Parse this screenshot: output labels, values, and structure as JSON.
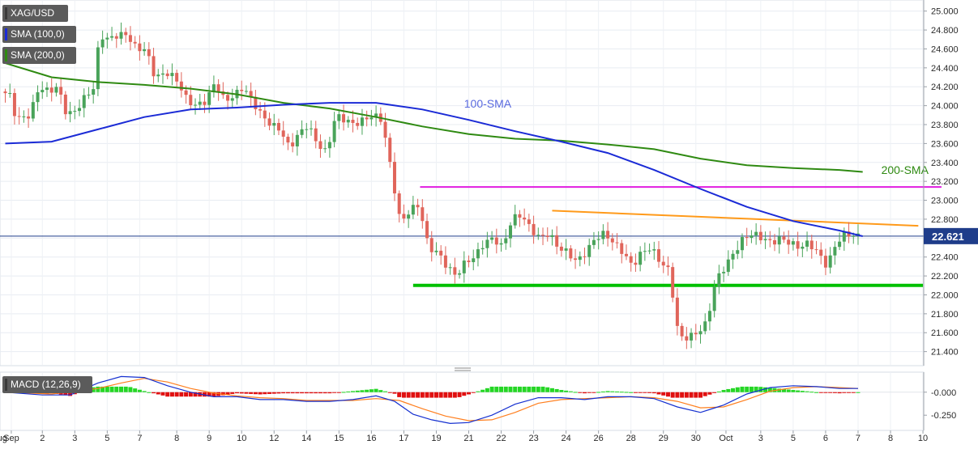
{
  "chart_data": [
    {
      "type": "candlestick",
      "symbol": "XAG/USD",
      "legend": [
        {
          "label": "XAG/USD",
          "color": "#3a3a3a"
        },
        {
          "label": "SMA (100,0)",
          "color": "#1b2bd6"
        },
        {
          "label": "SMA (200,0)",
          "color": "#2f8a12"
        }
      ],
      "y_ticks": [
        "25.000",
        "24.800",
        "24.600",
        "24.400",
        "24.200",
        "24.000",
        "23.800",
        "23.600",
        "23.400",
        "23.200",
        "23.000",
        "22.800",
        "22.600",
        "22.400",
        "22.200",
        "22.000",
        "21.800",
        "21.600",
        "21.400"
      ],
      "ylim": [
        21.26,
        25.1
      ],
      "x_ticks": [
        {
          "label": "Aug",
          "bar": -1.3
        },
        {
          "label": "Sep",
          "bar": 1.3
        },
        {
          "label": "2",
          "bar": 8
        },
        {
          "label": "3",
          "bar": 15
        },
        {
          "label": "5",
          "bar": 22
        },
        {
          "label": "7",
          "bar": 29
        },
        {
          "label": "8",
          "bar": 37
        },
        {
          "label": "9",
          "bar": 44
        },
        {
          "label": "10",
          "bar": 51
        },
        {
          "label": "12",
          "bar": 58
        },
        {
          "label": "14",
          "bar": 65
        },
        {
          "label": "15",
          "bar": 72
        },
        {
          "label": "16",
          "bar": 79
        },
        {
          "label": "17",
          "bar": 86
        },
        {
          "label": "19",
          "bar": 93
        },
        {
          "label": "21",
          "bar": 100
        },
        {
          "label": "22",
          "bar": 107
        },
        {
          "label": "23",
          "bar": 114
        },
        {
          "label": "24",
          "bar": 121
        },
        {
          "label": "26",
          "bar": 128
        },
        {
          "label": "28",
          "bar": 135
        },
        {
          "label": "29",
          "bar": 142
        },
        {
          "label": "30",
          "bar": 149
        },
        {
          "label": "Oct",
          "bar": 155.5
        },
        {
          "label": "3",
          "bar": 163
        },
        {
          "label": "5",
          "bar": 170
        },
        {
          "label": "6",
          "bar": 177
        },
        {
          "label": "7",
          "bar": 184
        },
        {
          "label": "8",
          "bar": 191
        },
        {
          "label": "10",
          "bar": 198
        }
      ],
      "last_price": "22.621",
      "last_price_value": 22.621,
      "anchors": [
        [
          0,
          24.15
        ],
        [
          2,
          24.1
        ],
        [
          3,
          23.85
        ],
        [
          6,
          23.9
        ],
        [
          8,
          24.2
        ],
        [
          10,
          24.15
        ],
        [
          12,
          24.2
        ],
        [
          14,
          23.9
        ],
        [
          16,
          23.95
        ],
        [
          18,
          24.1
        ],
        [
          20,
          24.2
        ],
        [
          21,
          24.75
        ],
        [
          23,
          24.7
        ],
        [
          25,
          24.75
        ],
        [
          27,
          24.75
        ],
        [
          29,
          24.6
        ],
        [
          31,
          24.6
        ],
        [
          33,
          24.3
        ],
        [
          36,
          24.35
        ],
        [
          38,
          24.25
        ],
        [
          40,
          24.05
        ],
        [
          42,
          24.0
        ],
        [
          44,
          24.05
        ],
        [
          46,
          24.25
        ],
        [
          48,
          24.05
        ],
        [
          50,
          24.1
        ],
        [
          52,
          24.2
        ],
        [
          54,
          24.05
        ],
        [
          56,
          23.9
        ],
        [
          58,
          23.8
        ],
        [
          60,
          23.75
        ],
        [
          62,
          23.55
        ],
        [
          64,
          23.7
        ],
        [
          66,
          23.8
        ],
        [
          68,
          23.6
        ],
        [
          70,
          23.5
        ],
        [
          72,
          23.9
        ],
        [
          74,
          23.85
        ],
        [
          76,
          23.8
        ],
        [
          78,
          23.85
        ],
        [
          80,
          23.9
        ],
        [
          82,
          23.85
        ],
        [
          84,
          23.3
        ],
        [
          86,
          22.75
        ],
        [
          88,
          22.9
        ],
        [
          90,
          22.95
        ],
        [
          92,
          22.5
        ],
        [
          94,
          22.45
        ],
        [
          96,
          22.3
        ],
        [
          98,
          22.2
        ],
        [
          100,
          22.35
        ],
        [
          102,
          22.4
        ],
        [
          104,
          22.55
        ],
        [
          106,
          22.6
        ],
        [
          108,
          22.5
        ],
        [
          110,
          22.8
        ],
        [
          112,
          22.85
        ],
        [
          114,
          22.7
        ],
        [
          116,
          22.6
        ],
        [
          118,
          22.65
        ],
        [
          120,
          22.5
        ],
        [
          122,
          22.45
        ],
        [
          124,
          22.35
        ],
        [
          126,
          22.45
        ],
        [
          128,
          22.6
        ],
        [
          130,
          22.65
        ],
        [
          132,
          22.55
        ],
        [
          134,
          22.45
        ],
        [
          136,
          22.3
        ],
        [
          138,
          22.45
        ],
        [
          140,
          22.5
        ],
        [
          142,
          22.35
        ],
        [
          144,
          22.25
        ],
        [
          146,
          21.55
        ],
        [
          148,
          21.55
        ],
        [
          150,
          21.6
        ],
        [
          152,
          21.7
        ],
        [
          154,
          22.15
        ],
        [
          156,
          22.3
        ],
        [
          158,
          22.45
        ],
        [
          160,
          22.6
        ],
        [
          162,
          22.65
        ],
        [
          164,
          22.6
        ],
        [
          166,
          22.55
        ],
        [
          168,
          22.6
        ],
        [
          170,
          22.55
        ],
        [
          172,
          22.5
        ],
        [
          174,
          22.55
        ],
        [
          176,
          22.45
        ],
        [
          178,
          22.3
        ],
        [
          180,
          22.55
        ],
        [
          182,
          22.65
        ],
        [
          184,
          22.62
        ]
      ],
      "sma_100": [
        [
          0,
          23.6
        ],
        [
          10,
          23.62
        ],
        [
          20,
          23.75
        ],
        [
          30,
          23.88
        ],
        [
          40,
          23.96
        ],
        [
          50,
          23.98
        ],
        [
          60,
          24.01
        ],
        [
          70,
          24.03
        ],
        [
          80,
          24.03
        ],
        [
          90,
          23.96
        ],
        [
          100,
          23.85
        ],
        [
          110,
          23.73
        ],
        [
          120,
          23.62
        ],
        [
          130,
          23.5
        ],
        [
          140,
          23.32
        ],
        [
          150,
          23.12
        ],
        [
          160,
          22.93
        ],
        [
          170,
          22.78
        ],
        [
          180,
          22.68
        ],
        [
          185,
          22.62
        ]
      ],
      "sma_200": [
        [
          0,
          24.45
        ],
        [
          10,
          24.3
        ],
        [
          20,
          24.25
        ],
        [
          30,
          24.22
        ],
        [
          40,
          24.18
        ],
        [
          50,
          24.12
        ],
        [
          60,
          24.03
        ],
        [
          70,
          23.97
        ],
        [
          80,
          23.88
        ],
        [
          90,
          23.78
        ],
        [
          100,
          23.7
        ],
        [
          110,
          23.65
        ],
        [
          120,
          23.63
        ],
        [
          130,
          23.59
        ],
        [
          140,
          23.54
        ],
        [
          150,
          23.44
        ],
        [
          160,
          23.37
        ],
        [
          170,
          23.34
        ],
        [
          180,
          23.32
        ],
        [
          185,
          23.3
        ]
      ],
      "annotations": [
        {
          "text": "100-SMA",
          "color": "#5a6adf",
          "bar": 99,
          "y": 23.98
        },
        {
          "text": "200-SMA",
          "color": "#2f8a12",
          "bar": 189,
          "y": 23.28
        }
      ],
      "levels": [
        {
          "name": "magenta-resistance",
          "color": "#e01ce0",
          "x1": 89.5,
          "x2": 202,
          "y1": 23.14,
          "y2": 23.14
        },
        {
          "name": "orange-trendline",
          "color": "#ff9a1a",
          "x1": 118,
          "x2": 197,
          "y1": 22.89,
          "y2": 22.73
        },
        {
          "name": "green-support",
          "color": "#00c000",
          "x1": 88,
          "x2": 198,
          "y1": 22.1,
          "y2": 22.1
        }
      ]
    },
    {
      "type": "macd",
      "label": "MACD (12,26,9)",
      "y_ticks": [
        "-0.000",
        "-0.250"
      ],
      "ylim": [
        -0.38,
        0.2
      ],
      "macd": [
        [
          0,
          0.0
        ],
        [
          8,
          -0.03
        ],
        [
          14,
          -0.03
        ],
        [
          20,
          0.1
        ],
        [
          25,
          0.17
        ],
        [
          30,
          0.16
        ],
        [
          35,
          0.07
        ],
        [
          40,
          0.0
        ],
        [
          45,
          -0.05
        ],
        [
          50,
          -0.05
        ],
        [
          55,
          -0.08
        ],
        [
          60,
          -0.08
        ],
        [
          65,
          -0.1
        ],
        [
          70,
          -0.1
        ],
        [
          75,
          -0.08
        ],
        [
          80,
          -0.04
        ],
        [
          84,
          -0.1
        ],
        [
          88,
          -0.24
        ],
        [
          92,
          -0.3
        ],
        [
          96,
          -0.34
        ],
        [
          100,
          -0.33
        ],
        [
          105,
          -0.25
        ],
        [
          110,
          -0.13
        ],
        [
          115,
          -0.06
        ],
        [
          120,
          -0.06
        ],
        [
          125,
          -0.08
        ],
        [
          130,
          -0.05
        ],
        [
          135,
          -0.05
        ],
        [
          140,
          -0.07
        ],
        [
          145,
          -0.16
        ],
        [
          150,
          -0.22
        ],
        [
          155,
          -0.14
        ],
        [
          160,
          -0.02
        ],
        [
          165,
          0.05
        ],
        [
          170,
          0.07
        ],
        [
          175,
          0.06
        ],
        [
          180,
          0.04
        ],
        [
          184,
          0.04
        ]
      ],
      "signal": [
        [
          0,
          0.0
        ],
        [
          10,
          -0.02
        ],
        [
          20,
          0.04
        ],
        [
          25,
          0.1
        ],
        [
          30,
          0.15
        ],
        [
          35,
          0.11
        ],
        [
          40,
          0.04
        ],
        [
          45,
          -0.01
        ],
        [
          50,
          -0.04
        ],
        [
          55,
          -0.06
        ],
        [
          60,
          -0.07
        ],
        [
          65,
          -0.09
        ],
        [
          70,
          -0.09
        ],
        [
          75,
          -0.09
        ],
        [
          80,
          -0.07
        ],
        [
          85,
          -0.09
        ],
        [
          90,
          -0.18
        ],
        [
          95,
          -0.26
        ],
        [
          100,
          -0.31
        ],
        [
          105,
          -0.3
        ],
        [
          110,
          -0.22
        ],
        [
          115,
          -0.12
        ],
        [
          120,
          -0.08
        ],
        [
          125,
          -0.07
        ],
        [
          130,
          -0.06
        ],
        [
          135,
          -0.05
        ],
        [
          140,
          -0.06
        ],
        [
          145,
          -0.1
        ],
        [
          150,
          -0.17
        ],
        [
          155,
          -0.16
        ],
        [
          160,
          -0.08
        ],
        [
          165,
          0.01
        ],
        [
          170,
          0.05
        ],
        [
          175,
          0.06
        ],
        [
          180,
          0.05
        ],
        [
          184,
          0.04
        ]
      ]
    }
  ]
}
